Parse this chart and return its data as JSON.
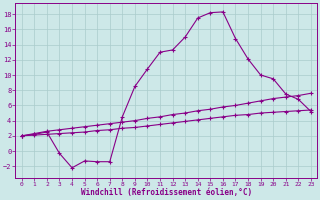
{
  "xlabel": "Windchill (Refroidissement éolien,°C)",
  "xlim": [
    -0.5,
    23.5
  ],
  "ylim": [
    -3.5,
    19.5
  ],
  "xticks": [
    0,
    1,
    2,
    3,
    4,
    5,
    6,
    7,
    8,
    9,
    10,
    11,
    12,
    13,
    14,
    15,
    16,
    17,
    18,
    19,
    20,
    21,
    22,
    23
  ],
  "yticks": [
    -2,
    0,
    2,
    4,
    6,
    8,
    10,
    12,
    14,
    16,
    18
  ],
  "bg_color": "#cde8e8",
  "line_color": "#880088",
  "grid_color": "#aacccc",
  "line1_x": [
    0,
    1,
    2,
    3,
    4,
    5,
    6,
    7,
    8,
    9,
    10,
    11,
    12,
    13,
    14,
    15,
    16,
    17,
    18,
    19,
    20,
    21,
    22,
    23
  ],
  "line1_y": [
    2.0,
    2.2,
    2.5,
    -0.3,
    -2.2,
    -1.3,
    -1.4,
    -1.4,
    4.5,
    8.5,
    10.8,
    13.0,
    13.3,
    15.0,
    17.5,
    18.2,
    18.3,
    14.8,
    12.1,
    10.0,
    9.5,
    7.5,
    6.8,
    5.2
  ],
  "line2_x": [
    0,
    1,
    2,
    3,
    4,
    5,
    6,
    7,
    8,
    9,
    10,
    11,
    12,
    13,
    14,
    15,
    16,
    17,
    18,
    19,
    20,
    21,
    22,
    23
  ],
  "line2_y": [
    2.0,
    2.3,
    2.6,
    2.8,
    3.0,
    3.2,
    3.4,
    3.6,
    3.8,
    4.0,
    4.3,
    4.5,
    4.8,
    5.0,
    5.3,
    5.5,
    5.8,
    6.0,
    6.3,
    6.6,
    6.9,
    7.1,
    7.3,
    7.6
  ],
  "line3_x": [
    0,
    1,
    2,
    3,
    4,
    5,
    6,
    7,
    8,
    9,
    10,
    11,
    12,
    13,
    14,
    15,
    16,
    17,
    18,
    19,
    20,
    21,
    22,
    23
  ],
  "line3_y": [
    2.0,
    2.1,
    2.2,
    2.3,
    2.4,
    2.5,
    2.7,
    2.8,
    3.0,
    3.1,
    3.3,
    3.5,
    3.7,
    3.9,
    4.1,
    4.3,
    4.5,
    4.7,
    4.8,
    5.0,
    5.1,
    5.2,
    5.3,
    5.4
  ],
  "marker_style": "+"
}
